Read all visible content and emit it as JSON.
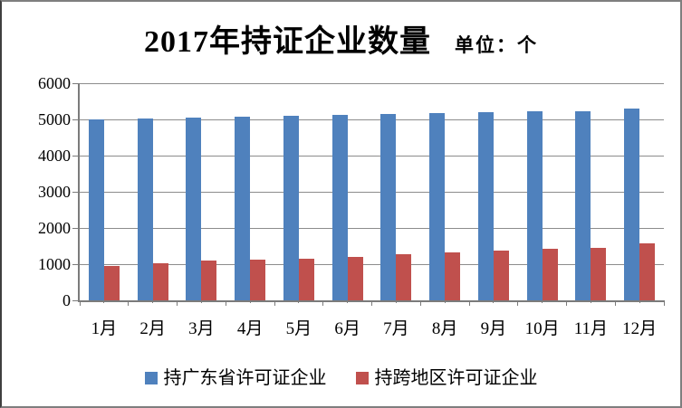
{
  "header": {
    "title": "2017年持证企业数量",
    "unit": "单位：个"
  },
  "colors": {
    "series_blue": "#4F81BD",
    "series_red": "#C0504D",
    "gridline": "#8c8c8c",
    "axis": "#7b7b7b",
    "text": "#000000",
    "background": "#ffffff"
  },
  "chart_data": {
    "type": "bar",
    "title": "2017年持证企业数量",
    "unit_label": "单位：个",
    "categories": [
      "1月",
      "2月",
      "3月",
      "4月",
      "5月",
      "6月",
      "7月",
      "8月",
      "9月",
      "10月",
      "11月",
      "12月"
    ],
    "series": [
      {
        "name": "持广东省许可证企业",
        "color": "#4F81BD",
        "values": [
          5000,
          5030,
          5060,
          5080,
          5090,
          5130,
          5140,
          5180,
          5200,
          5220,
          5230,
          5290
        ]
      },
      {
        "name": "持跨地区许可证企业",
        "color": "#C0504D",
        "values": [
          960,
          1020,
          1100,
          1130,
          1160,
          1190,
          1280,
          1330,
          1380,
          1420,
          1460,
          1580
        ]
      }
    ],
    "xlabel": "",
    "ylabel": "",
    "ylim": [
      0,
      6000
    ],
    "ytick_interval": 1000,
    "yticks": [
      0,
      1000,
      2000,
      3000,
      4000,
      5000,
      6000
    ],
    "grid": true,
    "legend_position": "bottom"
  }
}
